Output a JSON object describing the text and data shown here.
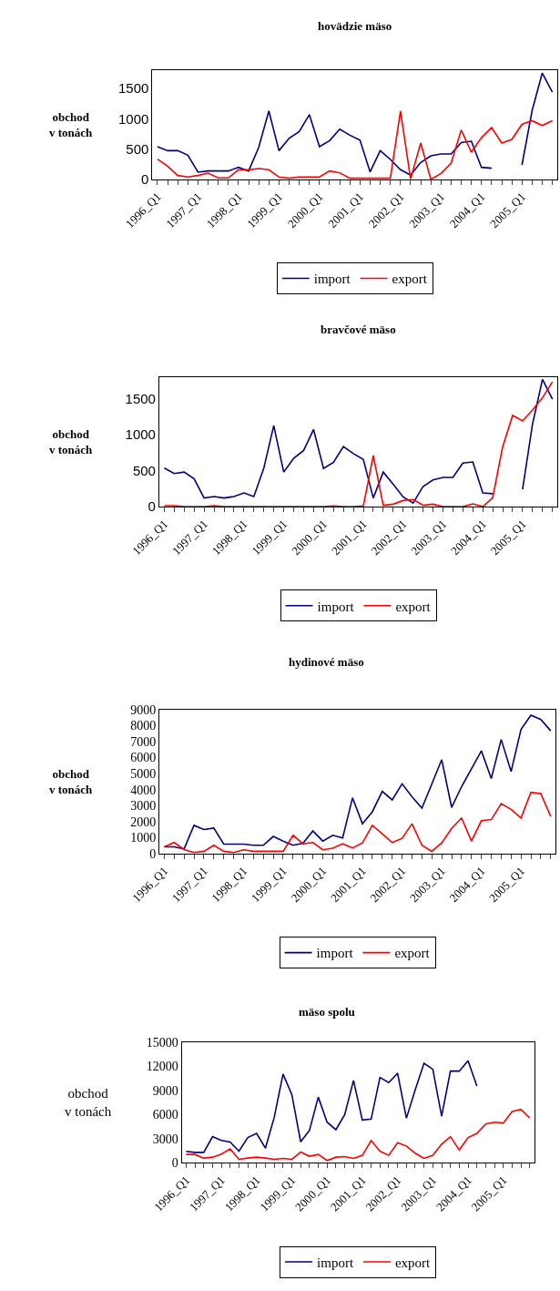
{
  "chart_data": [
    {
      "type": "line",
      "title": "hovädzie mäso",
      "ylabel": "obchod\nv tonách",
      "categories": [
        "1996_Q1",
        null,
        null,
        null,
        "1997_Q1",
        null,
        null,
        null,
        "1998_Q1",
        null,
        null,
        null,
        "1999_Q1",
        null,
        null,
        null,
        "2000_Q1",
        null,
        null,
        null,
        "2001_Q1",
        null,
        null,
        null,
        "2002_Q1",
        null,
        null,
        null,
        "2003_Q1",
        null,
        null,
        null,
        "2004_Q1",
        null,
        null,
        null,
        "2005_Q1",
        null,
        null,
        null
      ],
      "series": [
        {
          "name": "import",
          "color": "#000080",
          "values": [
            540,
            475,
            475,
            400,
            120,
            140,
            140,
            140,
            200,
            140,
            530,
            1130,
            475,
            680,
            790,
            1070,
            540,
            640,
            830,
            730,
            650,
            125,
            475,
            330,
            160,
            70,
            280,
            390,
            420,
            420,
            610,
            630,
            200,
            185,
            null,
            null,
            240,
            1135,
            1755,
            1440
          ]
        },
        {
          "name": "export",
          "color": "#ff0000",
          "values": [
            335,
            220,
            65,
            40,
            65,
            105,
            25,
            25,
            160,
            160,
            180,
            160,
            40,
            20,
            40,
            40,
            40,
            140,
            110,
            20,
            20,
            20,
            20,
            20,
            1130,
            10,
            600,
            0,
            100,
            270,
            815,
            450,
            690,
            855,
            600,
            660,
            910,
            970,
            890,
            970
          ]
        }
      ],
      "ylim": [
        0,
        1800
      ],
      "yticks": [
        0,
        500,
        1000,
        1500
      ],
      "legend": "bottom"
    },
    {
      "type": "line",
      "title": "bravčové mäso",
      "ylabel": "obchod\nv tonách",
      "categories": [
        "1996_Q1",
        null,
        null,
        null,
        "1997_Q1",
        null,
        null,
        null,
        "1998_Q1",
        null,
        null,
        null,
        "1999_Q1",
        null,
        null,
        null,
        "2000_Q1",
        null,
        null,
        null,
        "2001_Q1",
        null,
        null,
        null,
        "2002_Q1",
        null,
        null,
        null,
        "2003_Q1",
        null,
        null,
        null,
        "2004_Q1",
        null,
        null,
        null,
        "2005_Q1",
        null,
        null,
        null
      ],
      "series": [
        {
          "name": "import",
          "color": "#000080",
          "values": [
            535,
            460,
            480,
            385,
            120,
            140,
            120,
            140,
            190,
            140,
            535,
            1125,
            480,
            670,
            780,
            1070,
            530,
            615,
            835,
            735,
            655,
            120,
            480,
            310,
            135,
            50,
            280,
            370,
            405,
            405,
            605,
            620,
            190,
            180,
            null,
            null,
            240,
            1145,
            1765,
            1490
          ]
        },
        {
          "name": "export",
          "color": "#ff0000",
          "values": [
            15,
            15,
            0,
            0,
            0,
            15,
            0,
            0,
            0,
            0,
            0,
            0,
            0,
            0,
            0,
            0,
            0,
            10,
            0,
            0,
            10,
            710,
            20,
            35,
            85,
            100,
            20,
            35,
            0,
            0,
            0,
            40,
            0,
            125,
            830,
            1265,
            1190,
            1340,
            1510,
            1730
          ]
        }
      ],
      "ylim": [
        0,
        1800
      ],
      "yticks": [
        0,
        500,
        1000,
        1500
      ],
      "legend": "bottom"
    },
    {
      "type": "line",
      "title": "hydinové mäso",
      "ylabel": "obchod\nv tonách",
      "categories": [
        "1996_Q1",
        null,
        null,
        null,
        "1997_Q1",
        null,
        null,
        null,
        "1998_Q1",
        null,
        null,
        null,
        "1999_Q1",
        null,
        null,
        null,
        "2000_Q1",
        null,
        null,
        null,
        "2001_Q1",
        null,
        null,
        null,
        "2002_Q1",
        null,
        null,
        null,
        "2003_Q1",
        null,
        null,
        null,
        "2004_Q1",
        null,
        null,
        null,
        "2005_Q1",
        null,
        null,
        null
      ],
      "series": [
        {
          "name": "import",
          "color": "#000080",
          "values": [
            430,
            430,
            300,
            1770,
            1510,
            1600,
            600,
            600,
            600,
            530,
            530,
            1080,
            790,
            530,
            660,
            1420,
            790,
            1150,
            980,
            3490,
            1870,
            2620,
            3890,
            3360,
            4360,
            3560,
            2840,
            4350,
            5870,
            2890,
            4180,
            5300,
            6420,
            4690,
            7130,
            5130,
            7760,
            8640,
            8380,
            7670
          ]
        },
        {
          "name": "export",
          "color": "#ff0000",
          "values": [
            430,
            700,
            260,
            75,
            150,
            530,
            150,
            75,
            245,
            150,
            150,
            150,
            150,
            1150,
            620,
            700,
            245,
            340,
            620,
            360,
            680,
            1770,
            1250,
            700,
            960,
            1870,
            530,
            150,
            680,
            1580,
            2230,
            790,
            2060,
            2130,
            3130,
            2770,
            2230,
            3830,
            3750,
            2320
          ]
        }
      ],
      "ylim": [
        0,
        9000
      ],
      "yticks": [
        0,
        1000,
        2000,
        3000,
        4000,
        5000,
        6000,
        7000,
        8000,
        9000
      ],
      "legend": "bottom"
    },
    {
      "type": "line",
      "title": "mäso spolu",
      "ylabel": "obchod\nv tonách",
      "categories": [
        "1996_Q1",
        null,
        null,
        null,
        "1997_Q1",
        null,
        null,
        null,
        "1998_Q1",
        null,
        null,
        null,
        "1999_Q1",
        null,
        null,
        null,
        "2000_Q1",
        null,
        null,
        null,
        "2001_Q1",
        null,
        null,
        null,
        "2002_Q1",
        null,
        null,
        null,
        "2003_Q1",
        null,
        null,
        null,
        "2004_Q1",
        null,
        null,
        null,
        "2005_Q1",
        null,
        null,
        null
      ],
      "series": [
        {
          "name": "import",
          "color": "#000080",
          "values": [
            1430,
            1310,
            1310,
            3260,
            2780,
            2590,
            1460,
            3150,
            3670,
            1840,
            5660,
            11030,
            8480,
            2620,
            4050,
            8180,
            5060,
            4130,
            6000,
            10240,
            5330,
            5440,
            10610,
            9980,
            11140,
            5550,
            9080,
            12380,
            11630,
            5810,
            11400,
            11400,
            12680,
            9560,
            null,
            null,
            null,
            null,
            null,
            null
          ]
        },
        {
          "name": "export",
          "color": "#ff0000",
          "values": [
            1050,
            1050,
            600,
            710,
            1090,
            1730,
            450,
            600,
            710,
            600,
            450,
            560,
            450,
            1350,
            830,
            1050,
            300,
            710,
            790,
            560,
            940,
            2780,
            1460,
            940,
            2510,
            2100,
            1200,
            560,
            940,
            2330,
            3260,
            1610,
            3150,
            3670,
            4840,
            5060,
            4950,
            6380,
            6640,
            5590
          ]
        }
      ],
      "ylim": [
        0,
        15000
      ],
      "yticks": [
        0,
        3000,
        6000,
        9000,
        12000,
        15000
      ],
      "legend": "bottom"
    }
  ]
}
